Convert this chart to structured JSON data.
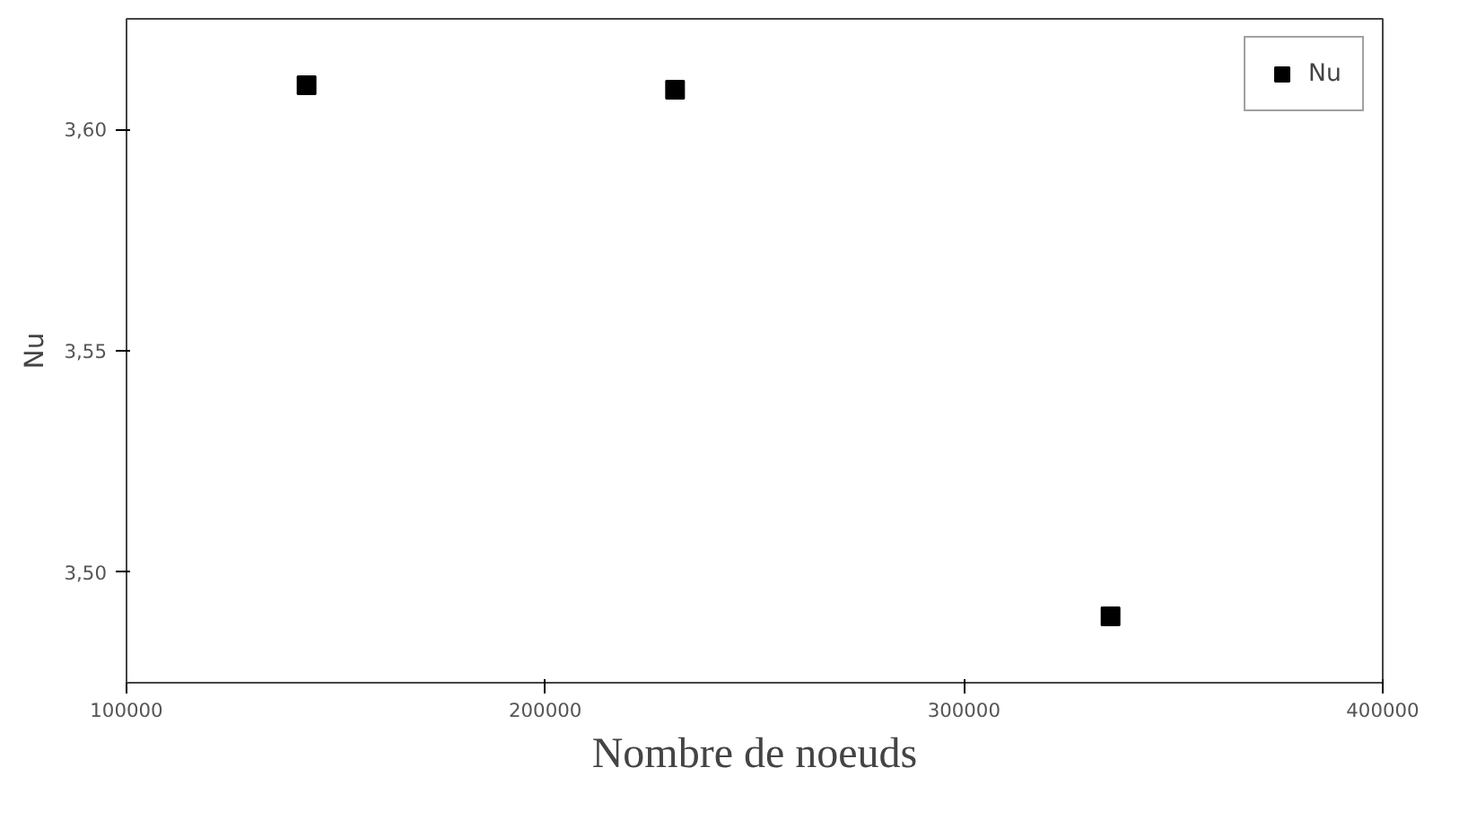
{
  "chart_data": {
    "type": "scatter",
    "xlabel": "Nombre de noeuds",
    "ylabel": "Nu",
    "x": [
      143000,
      231000,
      335000
    ],
    "series": [
      {
        "name": "Nu",
        "color": "#000000",
        "values": [
          3.61,
          3.609,
          3.49
        ]
      }
    ],
    "xlim": [
      100000,
      400000
    ],
    "xticks": [
      100000,
      200000,
      300000,
      400000
    ],
    "ylim": [
      3.475,
      3.625
    ],
    "yticks": [
      {
        "value": 3.5,
        "label": "3,50"
      },
      {
        "value": 3.55,
        "label": "3,55"
      },
      {
        "value": 3.6,
        "label": "3,60"
      }
    ],
    "marker": "square",
    "grid": false,
    "legend": "top right"
  }
}
